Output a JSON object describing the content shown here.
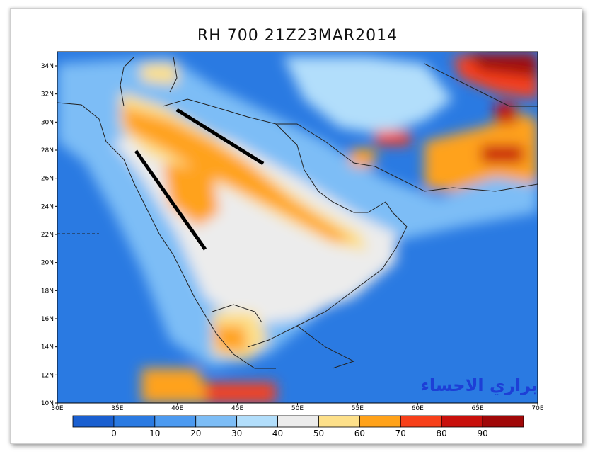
{
  "title": "RH 700 21Z23MAR2014",
  "watermark": "براري الاحساء",
  "lat_ticks": [
    "34N",
    "32N",
    "30N",
    "28N",
    "26N",
    "24N",
    "22N",
    "20N",
    "18N",
    "16N",
    "14N",
    "12N",
    "10N"
  ],
  "lon_ticks": [
    "30E",
    "35E",
    "40E",
    "45E",
    "50E",
    "55E",
    "60E",
    "65E",
    "70E"
  ],
  "colorbar": {
    "labels": [
      "0",
      "10",
      "20",
      "30",
      "40",
      "50",
      "60",
      "70",
      "80",
      "90"
    ],
    "colors": [
      "#1a5fd0",
      "#2a7ae2",
      "#4c9af0",
      "#7dbdf6",
      "#b2defb",
      "#ececec",
      "#fde08a",
      "#ffa21a",
      "#f7401a",
      "#c8100c",
      "#a00808"
    ]
  },
  "colors": {
    "land_border": "#222222",
    "annotation_line": "#000000"
  }
}
